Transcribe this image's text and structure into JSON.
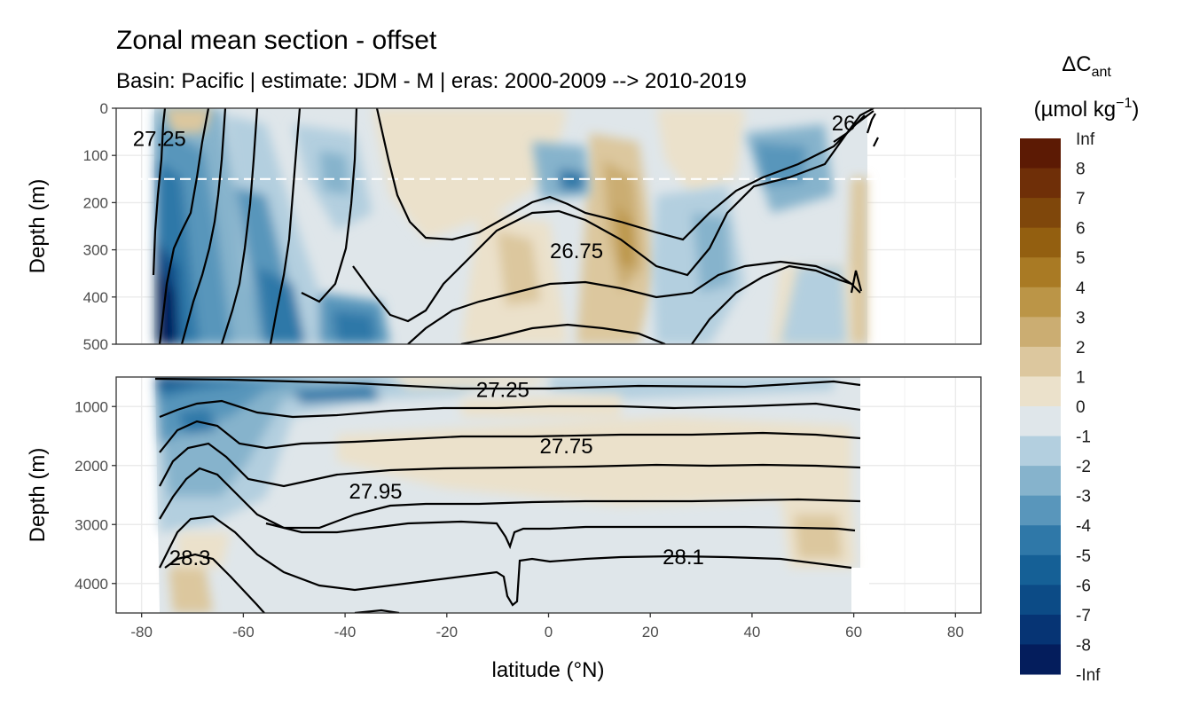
{
  "chart_data": {
    "type": "heatmap",
    "title": "Zonal mean section - offset",
    "subtitle": "Basin: Pacific | estimate: JDM - M | eras: 2000-2009 --> 2010-2019",
    "xlabel": "latitude (°N)",
    "ylabel_top": "Depth (m)",
    "ylabel_bottom": "Depth (m)",
    "xlim": [
      -85,
      85
    ],
    "x_ticks": [
      "-80",
      "-60",
      "-40",
      "-20",
      "0",
      "20",
      "40",
      "60",
      "80"
    ],
    "x_tick_values": [
      -80,
      -60,
      -40,
      -20,
      0,
      20,
      40,
      60,
      80
    ],
    "panels": [
      {
        "name": "upper",
        "depth_range": [
          0,
          500
        ],
        "y_ticks": [
          "0",
          "100",
          "200",
          "300",
          "400",
          "500"
        ],
        "y_tick_values": [
          0,
          100,
          200,
          300,
          400,
          500
        ],
        "reference_depth_dashed": 150,
        "contour_labels": [
          {
            "text": "27.25",
            "lat": -76.5,
            "depth": 65
          },
          {
            "text": "26.75",
            "lat": 5.5,
            "depth": 303
          },
          {
            "text": "26",
            "lat": 58,
            "depth": 32
          }
        ]
      },
      {
        "name": "lower",
        "depth_range": [
          500,
          4500
        ],
        "y_ticks": [
          "1000",
          "2000",
          "3000",
          "4000"
        ],
        "y_tick_values": [
          1000,
          2000,
          3000,
          4000
        ],
        "contour_labels": [
          {
            "text": "27.25",
            "lat": -9,
            "depth": 720
          },
          {
            "text": "27.75",
            "lat": 3.5,
            "depth": 1670
          },
          {
            "text": "27.95",
            "lat": -34,
            "depth": 2440
          },
          {
            "text": "28.3",
            "lat": -70.5,
            "depth": 3570
          },
          {
            "text": "28.1",
            "lat": 26.5,
            "depth": 3550
          }
        ]
      }
    ],
    "legend": {
      "title_main": "ΔC",
      "title_sub": "ant",
      "units_main": "(µmol kg",
      "units_sup": "−1",
      "units_end": ")",
      "labels": [
        "Inf",
        "8",
        "7",
        "6",
        "5",
        "4",
        "3",
        "2",
        "1",
        "0",
        "-1",
        "-2",
        "-3",
        "-4",
        "-5",
        "-6",
        "-7",
        "-8",
        "-Inf"
      ],
      "colors": [
        "#5c1a04",
        "#6f2f08",
        "#7f470b",
        "#935f10",
        "#a97a24",
        "#bb9547",
        "#cbad72",
        "#dcc79e",
        "#ebe1cb",
        "#dfe6ea",
        "#b3cfdf",
        "#86b3cc",
        "#5996bb",
        "#2f78a8",
        "#156096",
        "#0c4b86",
        "#063474",
        "#041d5c"
      ]
    },
    "colors": {
      "panel_border": "#333333",
      "grid": "#ebebeb",
      "contour": "#000000",
      "dashed_line": "#ffffff"
    }
  }
}
